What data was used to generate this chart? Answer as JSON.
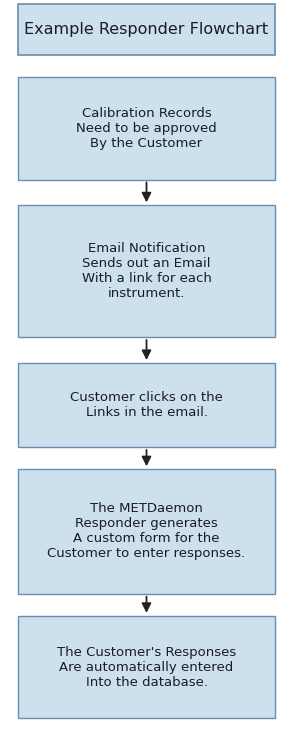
{
  "title": "Example Responder Flowchart",
  "title_fontsize": 11.5,
  "title_bg_color": "#cde0ee",
  "title_border_color": "#6a8eae",
  "box_bg_color": "#cde0ee",
  "box_border_color": "#6a8eae",
  "text_color": "#1a1a2e",
  "arrow_color": "#222222",
  "bg_color": "#ffffff",
  "font_family": "DejaVu Sans",
  "boxes": [
    "Calibration Records\nNeed to be approved\nBy the Customer",
    "Email Notification\nSends out an Email\nWith a link for each\ninstrument.",
    "Customer clicks on the\nLinks in the email.",
    "The METDaemon\nResponder generates\nA custom form for the\nCustomer to enter responses.",
    "The Customer's Responses\nAre automatically entered\nInto the database."
  ],
  "text_fontsize": 9.5,
  "fig_width": 2.93,
  "fig_height": 7.33,
  "dpi": 100
}
